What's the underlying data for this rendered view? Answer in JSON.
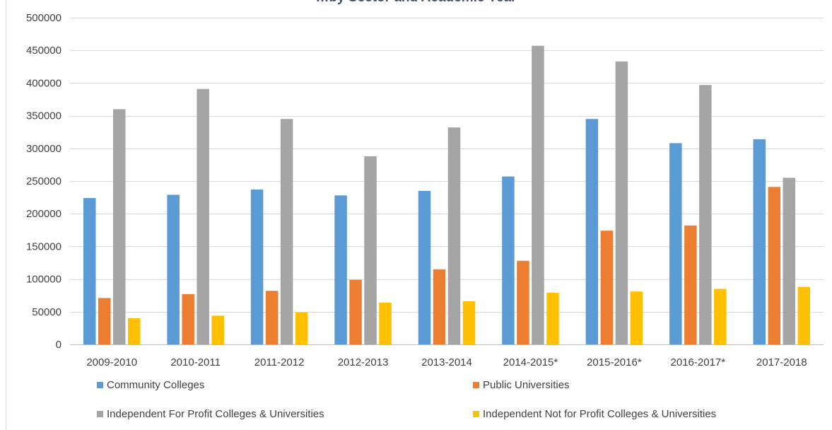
{
  "chart_data": {
    "type": "bar",
    "title": "…by Sector and Academic Year",
    "categories": [
      "2009-2010",
      "2010-2011",
      "2011-2012",
      "2012-2013",
      "2013-2014",
      "2014-2015*",
      "2015-2016*",
      "2016-2017*",
      "2017-2018"
    ],
    "series": [
      {
        "name": "Community Colleges",
        "color": "#5b9bd5",
        "values": [
          224000,
          229000,
          237000,
          228000,
          235000,
          257000,
          345000,
          308000,
          314000
        ]
      },
      {
        "name": "Public Universities",
        "color": "#ed7d31",
        "values": [
          71000,
          77000,
          82000,
          99000,
          115000,
          128000,
          174000,
          182000,
          241000
        ]
      },
      {
        "name": "Independent For Profit Colleges & Universities",
        "color": "#a5a5a5",
        "values": [
          360000,
          391000,
          345000,
          288000,
          332000,
          457000,
          433000,
          397000,
          255000
        ]
      },
      {
        "name": "Independent Not for Profit Colleges & Universities",
        "color": "#ffc000",
        "values": [
          40000,
          44000,
          49000,
          64000,
          66000,
          79000,
          81000,
          85000,
          88000
        ]
      }
    ],
    "yticks": [
      0,
      50000,
      100000,
      150000,
      200000,
      250000,
      300000,
      350000,
      400000,
      450000,
      500000
    ],
    "ylim": [
      0,
      500000
    ],
    "grid": true,
    "legend_position": "bottom"
  }
}
